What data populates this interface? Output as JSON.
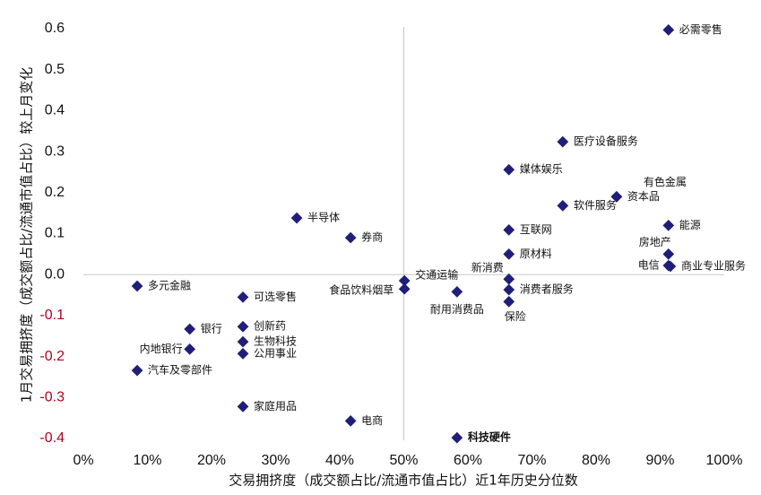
{
  "chart_data": {
    "type": "scatter",
    "x_label": "交易拥挤度（成交额占比/流通市值占比）近1年历史分位数",
    "y_label": "1月交易拥挤度（成交额占比/流通市值占比）较上月变化",
    "color": "#1f1f7a",
    "negative_tick_color": "#b00020",
    "xlim": [
      0,
      100
    ],
    "xticks": [
      {
        "value": 0,
        "label": "0%"
      },
      {
        "value": 10,
        "label": "10%"
      },
      {
        "value": 20,
        "label": "20%"
      },
      {
        "value": 30,
        "label": "30%"
      },
      {
        "value": 40,
        "label": "40%"
      },
      {
        "value": 50,
        "label": "50%"
      },
      {
        "value": 60,
        "label": "60%"
      },
      {
        "value": 70,
        "label": "70%"
      },
      {
        "value": 80,
        "label": "80%"
      },
      {
        "value": 90,
        "label": "90%"
      },
      {
        "value": 100,
        "label": "100%"
      }
    ],
    "ylim": [
      -0.4,
      0.6
    ],
    "yticks": [
      0.6,
      0.5,
      0.4,
      0.3,
      0.2,
      0.1,
      {
        "value": 0,
        "label": "0.0"
      },
      -0.1,
      -0.2,
      -0.3,
      -0.4
    ],
    "points": [
      {
        "label": "必需零售",
        "x": 91.3,
        "y": 0.597
      },
      {
        "label": "医疗设备服务",
        "x": 74.8,
        "y": 0.324
      },
      {
        "label": "媒体娱乐",
        "x": 66.4,
        "y": 0.256
      },
      {
        "label": "有色金属",
        "x": 83.2,
        "y": 0.19
      },
      {
        "label": "资本品",
        "x": 83.2,
        "y": 0.19
      },
      {
        "label": "软件服务",
        "x": 74.8,
        "y": 0.168
      },
      {
        "label": "能源",
        "x": 91.3,
        "y": 0.12
      },
      {
        "label": "互联网",
        "x": 66.4,
        "y": 0.109
      },
      {
        "label": "原材料",
        "x": 66.4,
        "y": 0.05
      },
      {
        "label": "房地产",
        "x": 91.3,
        "y": 0.05
      },
      {
        "label": "电信",
        "x": 91.3,
        "y": 0.022
      },
      {
        "label": "商业专业服务",
        "x": 91.6,
        "y": 0.02
      },
      {
        "label": "新消费",
        "x": 66.4,
        "y": -0.011
      },
      {
        "label": "消费者服务",
        "x": 66.4,
        "y": -0.037
      },
      {
        "label": "保险",
        "x": 66.4,
        "y": -0.066
      },
      {
        "label": "耐用消费品",
        "x": 58.3,
        "y": -0.042
      },
      {
        "label": "交通运输",
        "x": 50.1,
        "y": -0.015
      },
      {
        "label": "食品饮料烟草",
        "x": 50.1,
        "y": -0.035
      },
      {
        "label": "半导体",
        "x": 33.3,
        "y": 0.138
      },
      {
        "label": "券商",
        "x": 41.7,
        "y": 0.09
      },
      {
        "label": "多元金融",
        "x": 8.4,
        "y": -0.028
      },
      {
        "label": "可选零售",
        "x": 24.9,
        "y": -0.055
      },
      {
        "label": "银行",
        "x": 16.6,
        "y": -0.133
      },
      {
        "label": "创新药",
        "x": 24.9,
        "y": -0.127
      },
      {
        "label": "生物科技",
        "x": 24.9,
        "y": -0.164
      },
      {
        "label": "公用事业",
        "x": 24.9,
        "y": -0.193
      },
      {
        "label": "内地银行",
        "x": 16.6,
        "y": -0.182
      },
      {
        "label": "汽车及零部件",
        "x": 8.4,
        "y": -0.234
      },
      {
        "label": "家庭用品",
        "x": 24.9,
        "y": -0.322
      },
      {
        "label": "电商",
        "x": 41.7,
        "y": -0.357
      },
      {
        "label": "科技硬件",
        "x": 58.3,
        "y": -0.398
      }
    ]
  }
}
